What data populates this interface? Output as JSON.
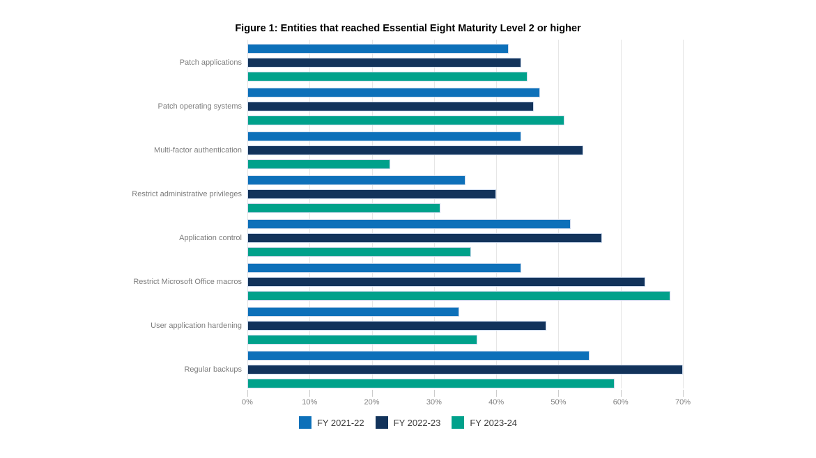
{
  "title": "Figure 1: Entities that reached Essential Eight Maturity Level 2 or higher",
  "chart_data": {
    "type": "bar",
    "orientation": "horizontal",
    "title": "Figure 1: Entities that reached Essential Eight Maturity Level 2 or higher",
    "categories": [
      "Patch applications",
      "Patch operating systems",
      "Multi-factor authentication",
      "Restrict administrative privileges",
      "Application control",
      "Restrict Microsoft Office macros",
      "User application hardening",
      "Regular backups"
    ],
    "series": [
      {
        "name": "FY 2021-22",
        "color": "#0d70b9",
        "values": [
          42,
          47,
          44,
          35,
          52,
          44,
          34,
          55
        ]
      },
      {
        "name": "FY 2022-23",
        "color": "#12335b",
        "values": [
          44,
          46,
          54,
          40,
          57,
          64,
          48,
          70
        ]
      },
      {
        "name": "FY 2023-24",
        "color": "#00a18b",
        "values": [
          45,
          51,
          23,
          31,
          36,
          68,
          37,
          59
        ]
      }
    ],
    "x_axis": {
      "unit": "%",
      "min": 0,
      "max": 70,
      "tick_labels": [
        "0%",
        "10%",
        "20%",
        "30%",
        "40%",
        "50%",
        "60%",
        "70%"
      ]
    },
    "grid": "vertical-only",
    "legend_position": "bottom"
  },
  "colors": {
    "background": "#ffffff",
    "gridline": "#e6e6e6",
    "tick": "#cccccc",
    "bar_border": "#ccd9ec",
    "category_label": "#7d7d7d",
    "axis_label": "#808080",
    "legend_label": "#3c3c3c",
    "title": "#000000"
  }
}
